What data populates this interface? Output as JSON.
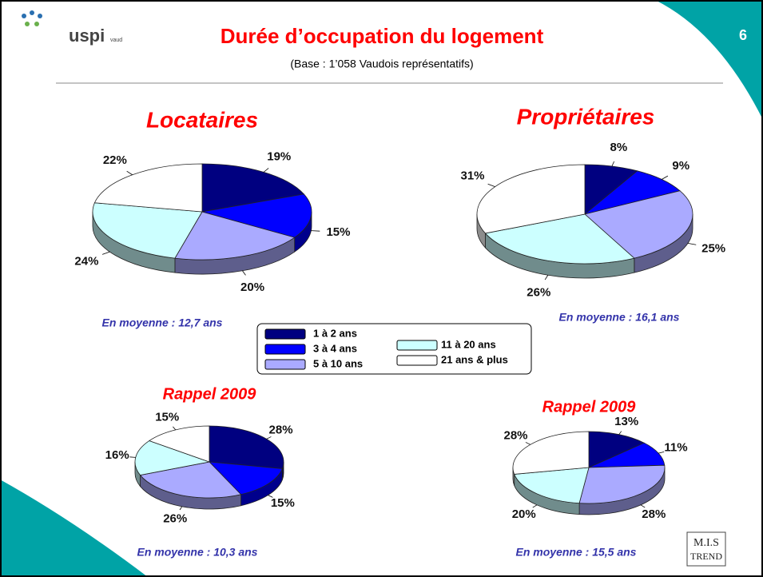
{
  "header": {
    "title": "Durée d’occupation du logement",
    "subtitle": "(Base : 1’058 Vaudois représentatifs)",
    "page_number": "6"
  },
  "logos": {
    "uspi": "uspi",
    "vaud": "vaud",
    "mis": "M.I.S",
    "trend": "TREND"
  },
  "chart_data": [
    {
      "type": "pie",
      "title": "Locataires",
      "categories": [
        "1 à 2 ans",
        "3 à 4 ans",
        "5 à 10 ans",
        "11 à 20 ans",
        "21 ans & plus"
      ],
      "values": [
        19,
        15,
        20,
        24,
        22
      ],
      "value_labels": [
        "19%",
        "15%",
        "20%",
        "24%",
        "22%"
      ],
      "colors": [
        "#000080",
        "#0000ff",
        "#aaaaff",
        "#ccffff",
        "#ffffff"
      ],
      "annotation": "En moyenne : 12,7 ans"
    },
    {
      "type": "pie",
      "title": "Propriétaires",
      "categories": [
        "1 à 2 ans",
        "3 à 4 ans",
        "5 à 10 ans",
        "11 à 20 ans",
        "21 ans & plus"
      ],
      "values": [
        8,
        9,
        25,
        26,
        31
      ],
      "value_labels": [
        "8%",
        "9%",
        "25%",
        "26%",
        "31%"
      ],
      "colors": [
        "#000080",
        "#0000ff",
        "#aaaaff",
        "#ccffff",
        "#ffffff"
      ],
      "annotation": "En moyenne : 16,1 ans"
    },
    {
      "type": "pie",
      "title": "Rappel 2009",
      "categories": [
        "1 à 2 ans",
        "3 à 4 ans",
        "5 à 10 ans",
        "11 à 20 ans",
        "21 ans & plus"
      ],
      "values": [
        28,
        15,
        26,
        16,
        15
      ],
      "value_labels": [
        "28%",
        "15%",
        "26%",
        "16%",
        "15%"
      ],
      "colors": [
        "#000080",
        "#0000ff",
        "#aaaaff",
        "#ccffff",
        "#ffffff"
      ],
      "annotation": "En moyenne : 10,3 ans"
    },
    {
      "type": "pie",
      "title": "Rappel 2009",
      "categories": [
        "1 à 2 ans",
        "3 à 4 ans",
        "5 à 10 ans",
        "11 à 20 ans",
        "21 ans & plus"
      ],
      "values": [
        13,
        11,
        28,
        20,
        28
      ],
      "value_labels": [
        "13%",
        "11%",
        "28%",
        "20%",
        "28%"
      ],
      "colors": [
        "#000080",
        "#0000ff",
        "#aaaaff",
        "#ccffff",
        "#ffffff"
      ],
      "annotation": "En moyenne : 15,5 ans"
    }
  ]
}
